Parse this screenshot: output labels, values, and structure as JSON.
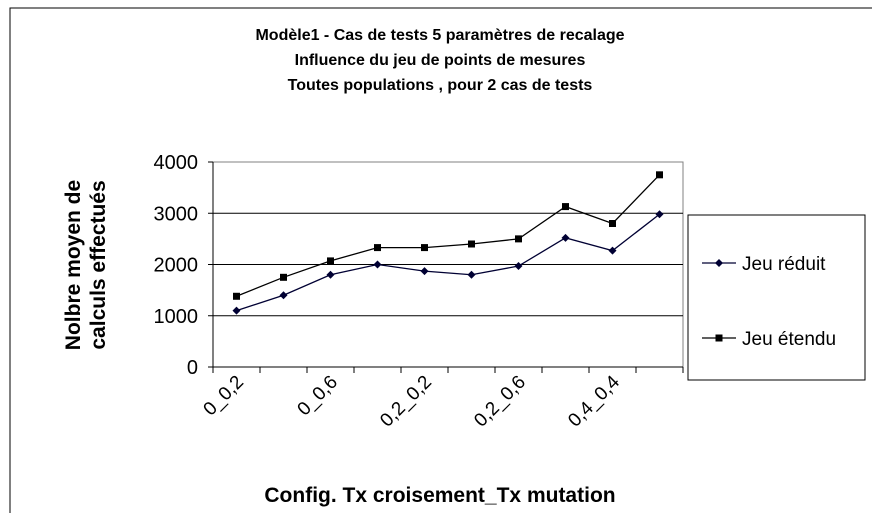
{
  "chart_data": {
    "type": "line",
    "title": [
      "Modèle1 - Cas de tests 5  paramètres de recalage",
      "Influence du jeu de points de mesures",
      "Toutes populations , pour 2 cas de tests"
    ],
    "y_label": [
      "Nolbre moyen de",
      "calculs effectués"
    ],
    "x_label": "Config. Tx croisement_Tx mutation",
    "categories": [
      "0_0,2",
      null,
      "0_0,6",
      null,
      "0,2_0,2",
      null,
      "0,2_0,6",
      null,
      "0,4_0,4",
      null
    ],
    "series": [
      {
        "name": "Jeu réduit",
        "color": "#000033",
        "marker": "diamond",
        "values": [
          1100,
          1400,
          1800,
          2000,
          1870,
          1800,
          1970,
          2520,
          2270,
          2980
        ]
      },
      {
        "name": "Jeu étendu",
        "color": "#000000",
        "marker": "square",
        "values": [
          1380,
          1750,
          2070,
          2330,
          2330,
          2400,
          2500,
          3130,
          2800,
          3750
        ]
      }
    ],
    "ylim": [
      0,
      4000
    ],
    "yticks": [
      0,
      1000,
      2000,
      3000,
      4000
    ],
    "grid": true,
    "legend": "right"
  }
}
